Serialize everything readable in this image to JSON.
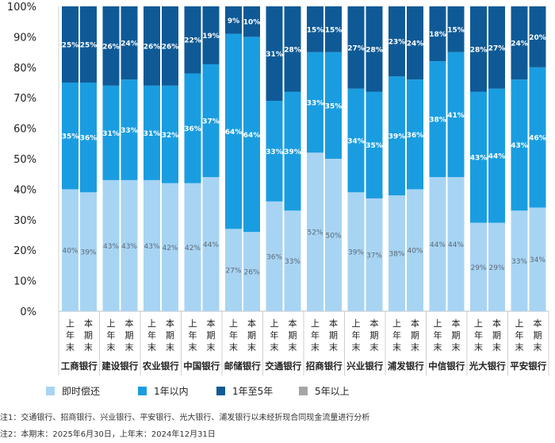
{
  "chart_data": {
    "type": "stacked_bar",
    "ylim": [
      0,
      100
    ],
    "yticks": [
      "0%",
      "10%",
      "20%",
      "30%",
      "40%",
      "50%",
      "60%",
      "70%",
      "80%",
      "90%",
      "100%"
    ],
    "banks": [
      "工商银行",
      "建设银行",
      "农业银行",
      "中国银行",
      "邮储银行",
      "交通银行",
      "招商银行",
      "兴业银行",
      "浦发银行",
      "中信银行",
      "光大银行",
      "平安银行"
    ],
    "period_labels": [
      "上年末",
      "本期末"
    ],
    "series": [
      {
        "name": "即时偿还",
        "color": "#a8d4f3",
        "values": [
          40,
          39,
          43,
          43,
          43,
          42,
          42,
          44,
          27,
          26,
          36,
          33,
          52,
          50,
          39,
          37,
          38,
          40,
          44,
          44,
          29,
          29,
          33,
          34
        ],
        "labels": [
          "40%",
          "39%",
          "43%",
          "43%",
          "43%",
          "42%",
          "42%",
          "44%",
          "27%",
          "26%",
          "36%",
          "33%",
          "52%",
          "50%",
          "39%",
          "37%",
          "38%",
          "40%",
          "44%",
          "44%",
          "29%",
          "29%",
          "33%",
          "34%"
        ]
      },
      {
        "name": "1年以内",
        "color": "#1a9de0",
        "values": [
          35,
          36,
          31,
          33,
          31,
          32,
          36,
          37,
          64,
          64,
          33,
          39,
          33,
          35,
          34,
          35,
          39,
          36,
          38,
          41,
          43,
          44,
          43,
          46
        ],
        "labels": [
          "35%",
          "36%",
          "31%",
          "33%",
          "31%",
          "32%",
          "36%",
          "37%",
          "64%",
          "64%",
          "33%",
          "39%",
          "33%",
          "35%",
          "34%",
          "35%",
          "39%",
          "36%",
          "38%",
          "41%",
          "43%",
          "44%",
          "43%",
          "46%"
        ]
      },
      {
        "name": "1年至5年",
        "color": "#0f5a96",
        "values": [
          25,
          25,
          26,
          24,
          26,
          26,
          22,
          19,
          9,
          10,
          31,
          28,
          15,
          15,
          27,
          28,
          23,
          24,
          18,
          15,
          28,
          27,
          24,
          20
        ],
        "labels": [
          "25%",
          "25%",
          "26%",
          "24%",
          "26%",
          "26%",
          "22%",
          "19%",
          "9%",
          "10%",
          "31%",
          "28%",
          "15%",
          "15%",
          "27%",
          "28%",
          "23%",
          "24%",
          "18%",
          "15%",
          "28%",
          "27%",
          "24%",
          "20%"
        ]
      },
      {
        "name": "5年以上",
        "color": "#a6a6a6",
        "values": [
          0,
          0,
          0,
          0,
          0,
          0,
          0,
          0,
          0,
          0,
          0,
          0,
          0,
          0,
          0,
          0,
          0,
          0,
          0,
          0,
          0,
          0,
          0,
          0
        ],
        "labels": []
      }
    ]
  },
  "legend": [
    {
      "label": "即时偿还",
      "color": "#a8d4f3"
    },
    {
      "label": "1年以内",
      "color": "#1a9de0"
    },
    {
      "label": "1年至5年",
      "color": "#0f5a96"
    },
    {
      "label": "5年以上",
      "color": "#a6a6a6"
    }
  ],
  "notes": {
    "note1": "注1：交通银行、招商银行、兴业银行、平安银行、光大银行、浦发银行以未经折现合同现金流量进行分析",
    "note2": "注2：本期末：2025年6月30日，上年末：2024年12月31日"
  }
}
